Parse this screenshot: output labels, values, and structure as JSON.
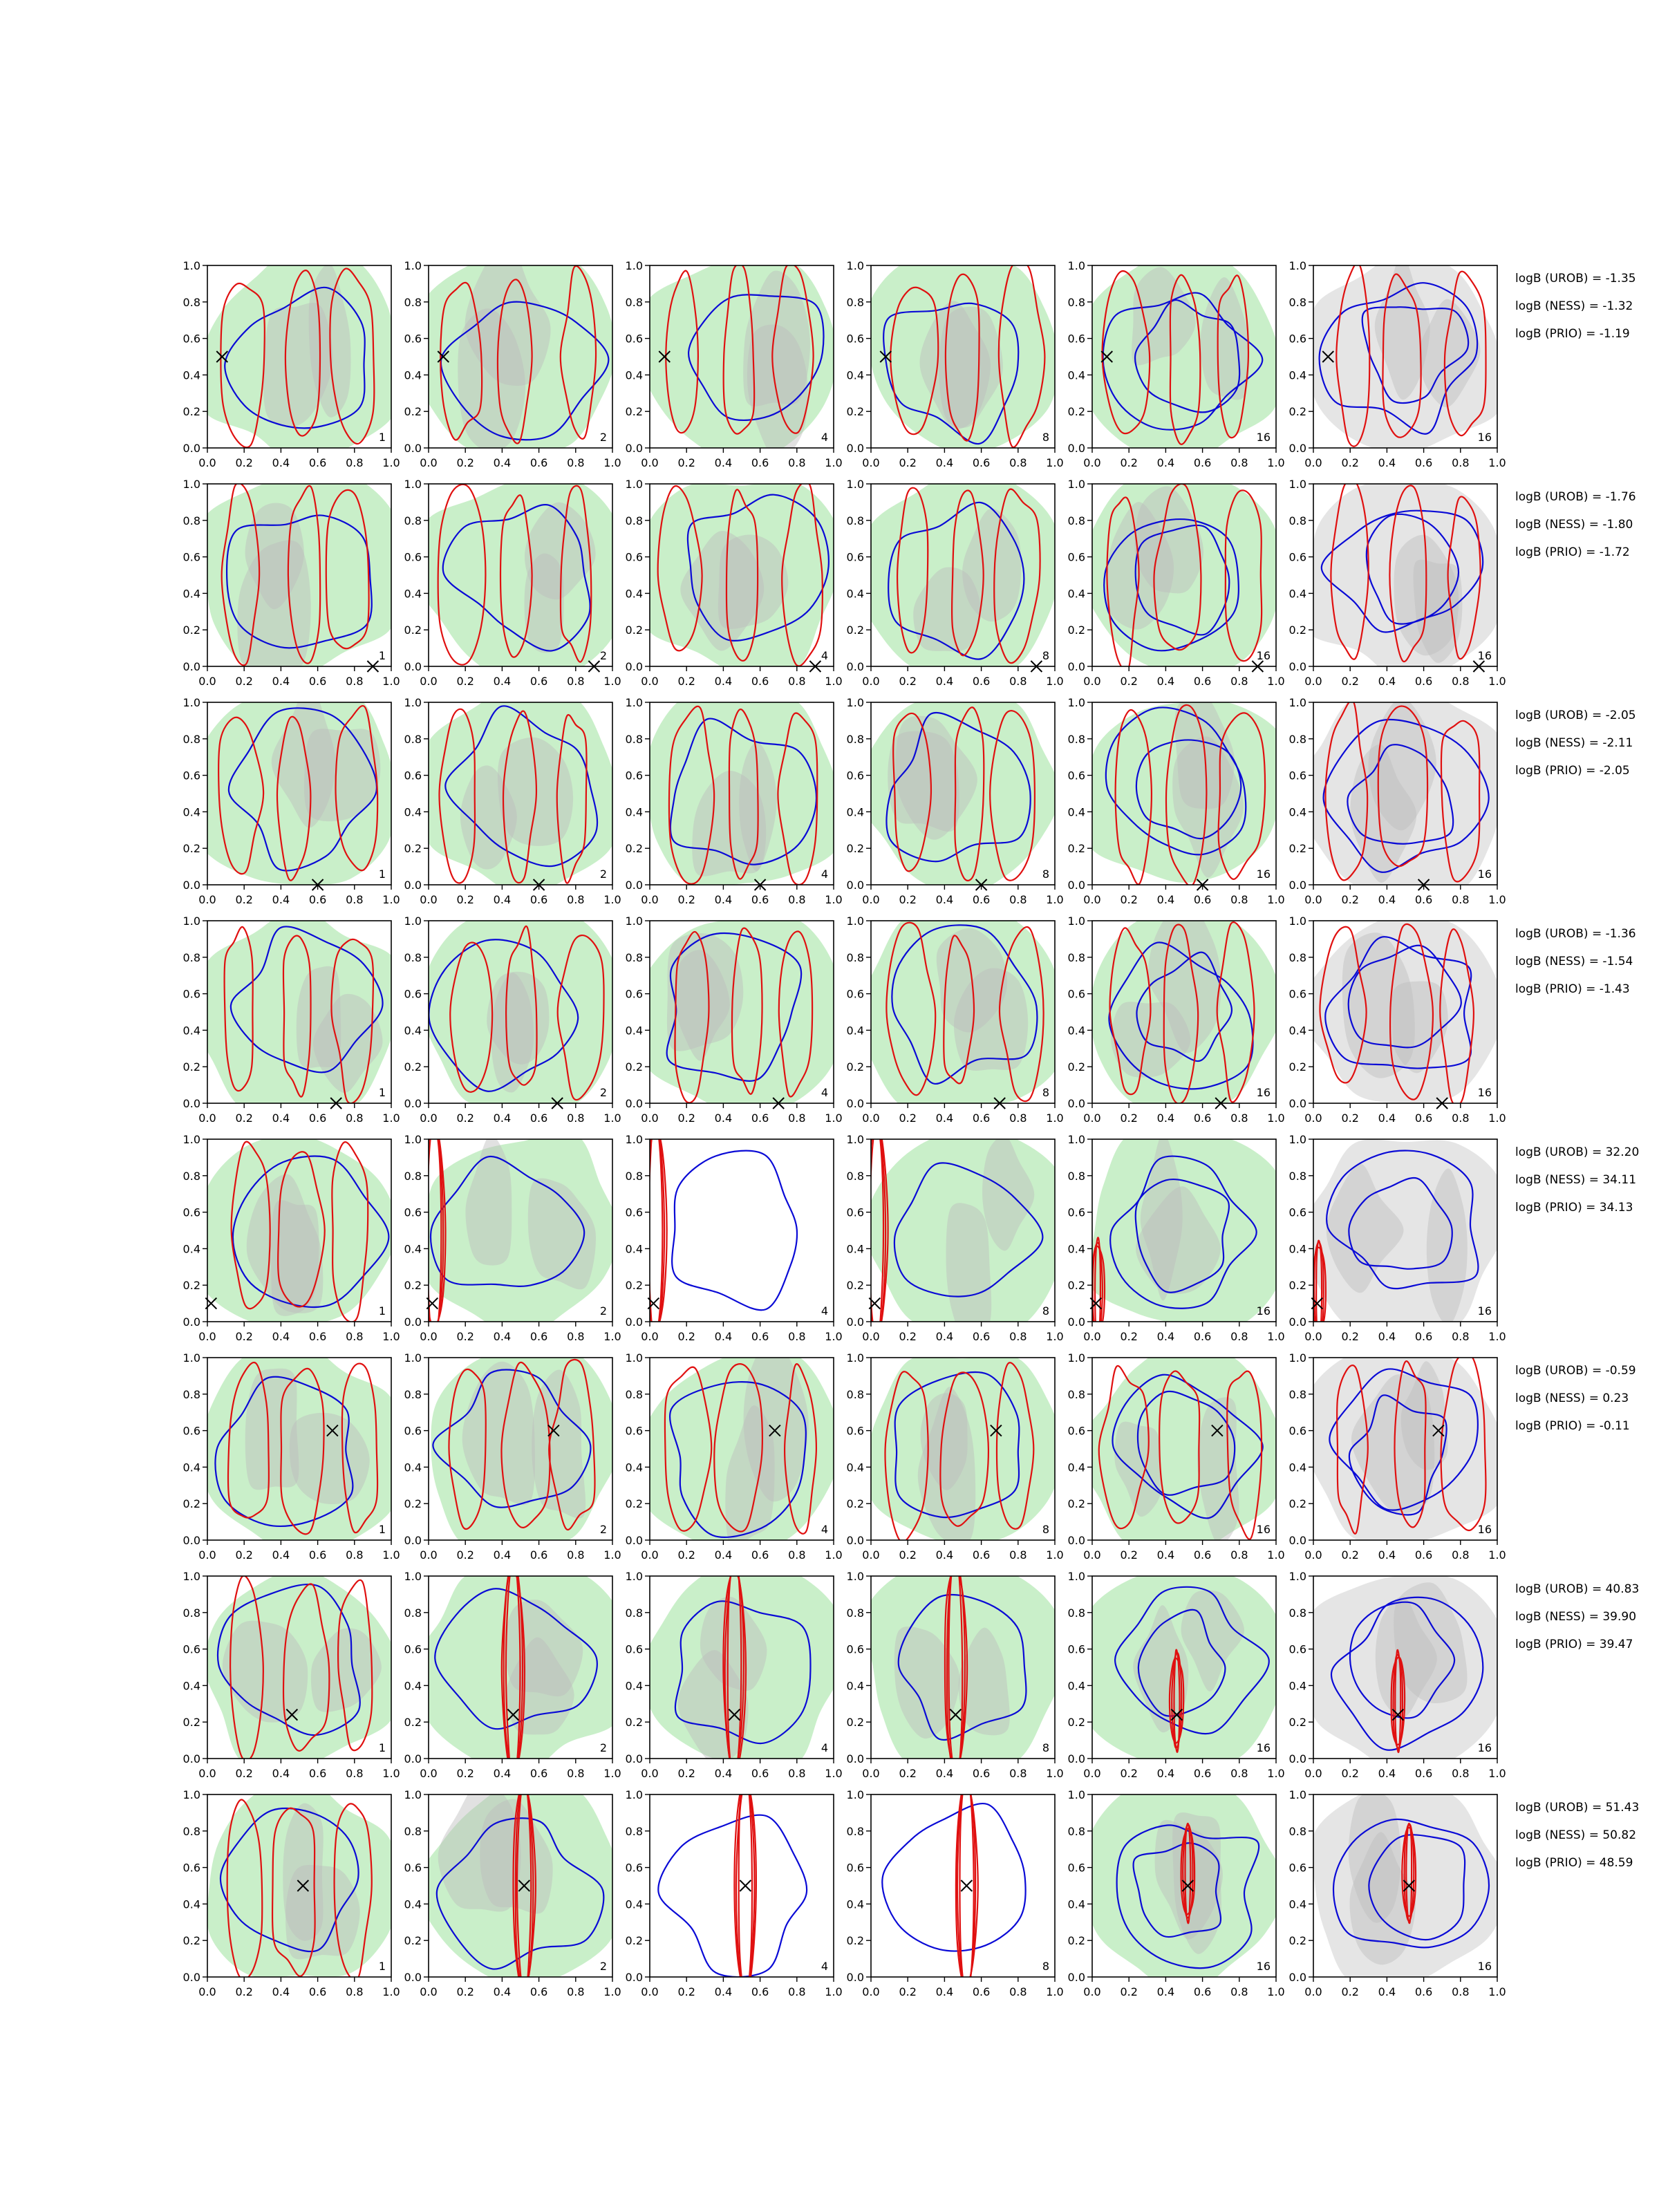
{
  "figure": {
    "columns": 6,
    "rows": 8,
    "axis": {
      "xlim": [
        0.0,
        1.0
      ],
      "ylim": [
        0.0,
        1.0
      ],
      "ticks": [
        0.0,
        0.2,
        0.4,
        0.6,
        0.8,
        1.0
      ],
      "tick_labels": [
        "0.0",
        "0.2",
        "0.4",
        "0.6",
        "0.8",
        "1.0"
      ]
    },
    "panel_labels": [
      "1",
      "2",
      "4",
      "8",
      "16",
      "16"
    ],
    "colors": {
      "filled_main": "#c9efc9",
      "filled_dark": "#bcbcbc",
      "filled_light": "#e5e5e5",
      "red_contour": "#e01010",
      "blue_contour": "#0a0ad6",
      "marker": "#000000",
      "frame": "#000000"
    }
  },
  "chart_data": [
    {
      "type": "contour",
      "row": 1,
      "marker": [
        0.08,
        0.5
      ],
      "logB_labels": [
        "logB (UROB) = -1.35",
        "logB (NESS) = -1.32",
        "logB (PRIO) = -1.19"
      ]
    },
    {
      "type": "contour",
      "row": 2,
      "marker": [
        0.9,
        0.0
      ],
      "logB_labels": [
        "logB (UROB) = -1.76",
        "logB (NESS) = -1.80",
        "logB (PRIO) = -1.72"
      ]
    },
    {
      "type": "contour",
      "row": 3,
      "marker": [
        0.6,
        0.0
      ],
      "logB_labels": [
        "logB (UROB) = -2.05",
        "logB (NESS) = -2.11",
        "logB (PRIO) = -2.05"
      ]
    },
    {
      "type": "contour",
      "row": 4,
      "marker": [
        0.7,
        0.0
      ],
      "logB_labels": [
        "logB (UROB) = -1.36",
        "logB (NESS) = -1.54",
        "logB (PRIO) = -1.43"
      ]
    },
    {
      "type": "contour",
      "row": 5,
      "marker": [
        0.02,
        0.1
      ],
      "logB_labels": [
        "logB (UROB) = 32.20",
        "logB (NESS) = 34.11",
        "logB (PRIO) = 34.13"
      ]
    },
    {
      "type": "contour",
      "row": 6,
      "marker": [
        0.68,
        0.6
      ],
      "logB_labels": [
        "logB (UROB) = -0.59",
        "logB (NESS) = 0.23",
        "logB (PRIO) = -0.11"
      ]
    },
    {
      "type": "contour",
      "row": 7,
      "marker": [
        0.46,
        0.24
      ],
      "logB_labels": [
        "logB (UROB) = 40.83",
        "logB (NESS) = 39.90",
        "logB (PRIO) = 39.47"
      ]
    },
    {
      "type": "contour",
      "row": 8,
      "marker": [
        0.52,
        0.5
      ],
      "logB_labels": [
        "logB (UROB) = 51.43",
        "logB (NESS) = 50.82",
        "logB (PRIO) = 48.59"
      ]
    }
  ]
}
